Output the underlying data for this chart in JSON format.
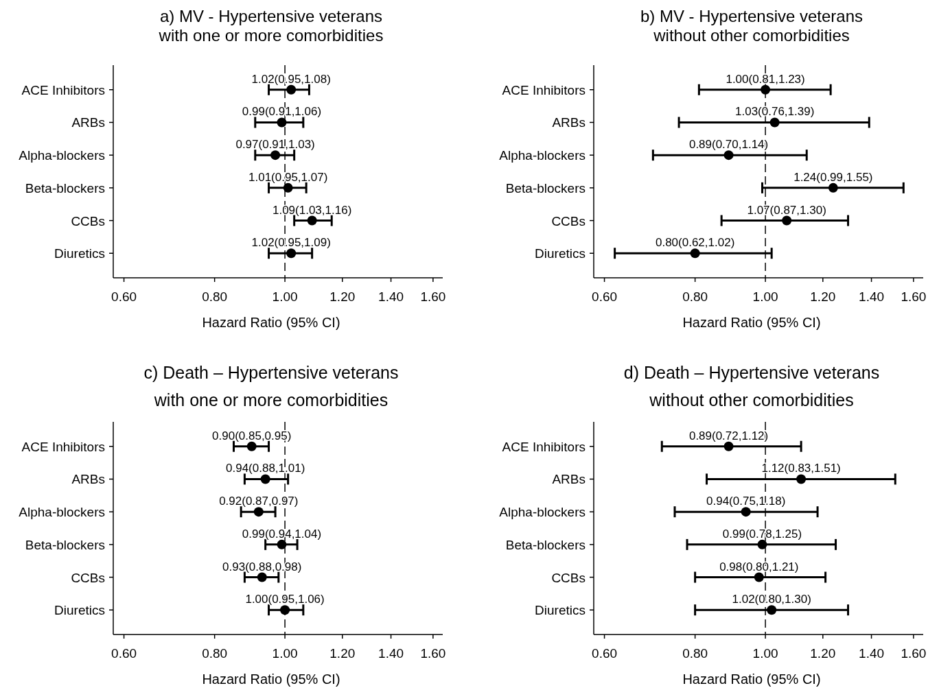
{
  "chart_data": [
    {
      "type": "scatter",
      "orientation": "horizontal",
      "title": "a) MV - Hypertensive veterans\nwith one or more comorbidities",
      "xlabel": "Hazard Ratio (95% CI)",
      "categories": [
        "ACE Inhibitors",
        "ARBs",
        "Alpha-blockers",
        "Beta-blockers",
        "CCBs",
        "Diuretics"
      ],
      "values": [
        1.02,
        0.99,
        0.97,
        1.01,
        1.09,
        1.02
      ],
      "errors": [
        [
          0.95,
          1.08
        ],
        [
          0.91,
          1.06
        ],
        [
          0.91,
          1.03
        ],
        [
          0.95,
          1.07
        ],
        [
          1.03,
          1.16
        ],
        [
          0.95,
          1.09
        ]
      ],
      "value_labels": [
        "1.02(0.95,1.08)",
        "0.99(0.91,1.06)",
        "0.97(0.91,1.03)",
        "1.01(0.95,1.07)",
        "1.09(1.03,1.16)",
        "1.02(0.95,1.09)"
      ],
      "color": "#000000",
      "marker": "circle",
      "log": "x",
      "xlim": [
        0.58,
        1.65
      ],
      "xticks": [
        {
          "value": 0.6,
          "label": "0.60"
        },
        {
          "value": 0.8,
          "label": "0.80"
        },
        {
          "value": 1,
          "label": "1.00"
        },
        {
          "value": 1.2,
          "label": "1.20"
        },
        {
          "value": 1.4,
          "label": "1.40"
        },
        {
          "value": 1.6,
          "label": "1.60"
        }
      ],
      "ref_lines": [
        {
          "axis": "x",
          "value": 1,
          "line_style": "dashed"
        }
      ],
      "grid": false
    },
    {
      "type": "scatter",
      "orientation": "horizontal",
      "title": "b) MV - Hypertensive veterans\nwithout other comorbidities",
      "xlabel": "Hazard Ratio (95% CI)",
      "categories": [
        "ACE Inhibitors",
        "ARBs",
        "Alpha-blockers",
        "Beta-blockers",
        "CCBs",
        "Diuretics"
      ],
      "values": [
        1.0,
        1.03,
        0.89,
        1.24,
        1.07,
        0.8
      ],
      "errors": [
        [
          0.81,
          1.23
        ],
        [
          0.76,
          1.39
        ],
        [
          0.7,
          1.14
        ],
        [
          0.99,
          1.55
        ],
        [
          0.87,
          1.3
        ],
        [
          0.62,
          1.02
        ]
      ],
      "value_labels": [
        "1.00(0.81,1.23)",
        "1.03(0.76,1.39)",
        "0.89(0.70,1.14)",
        "1.24(0.99,1.55)",
        "1.07(0.87,1.30)",
        "0.80(0.62,1.02)"
      ],
      "color": "#000000",
      "marker": "circle",
      "log": "x",
      "xlim": [
        0.58,
        1.65
      ],
      "xticks": [
        {
          "value": 0.6,
          "label": "0.60"
        },
        {
          "value": 0.8,
          "label": "0.80"
        },
        {
          "value": 1,
          "label": "1.00"
        },
        {
          "value": 1.2,
          "label": "1.20"
        },
        {
          "value": 1.4,
          "label": "1.40"
        },
        {
          "value": 1.6,
          "label": "1.60"
        }
      ],
      "ref_lines": [
        {
          "axis": "x",
          "value": 1,
          "line_style": "dashed"
        }
      ],
      "grid": false
    },
    {
      "type": "scatter",
      "orientation": "horizontal",
      "title": "c) Death – Hypertensive veterans\nwith one or more comorbidities",
      "xlabel": "Hazard Ratio (95% CI)",
      "categories": [
        "ACE Inhibitors",
        "ARBs",
        "Alpha-blockers",
        "Beta-blockers",
        "CCBs",
        "Diuretics"
      ],
      "values": [
        0.9,
        0.94,
        0.92,
        0.99,
        0.93,
        1.0
      ],
      "errors": [
        [
          0.85,
          0.95
        ],
        [
          0.88,
          1.01
        ],
        [
          0.87,
          0.97
        ],
        [
          0.94,
          1.04
        ],
        [
          0.88,
          0.98
        ],
        [
          0.95,
          1.06
        ]
      ],
      "value_labels": [
        "0.90(0.85,0.95)",
        "0.94(0.88,1.01)",
        "0.92(0.87,0.97)",
        "0.99(0.94,1.04)",
        "0.93(0.88,0.98)",
        "1.00(0.95,1.06)"
      ],
      "color": "#000000",
      "marker": "circle",
      "log": "x",
      "xlim": [
        0.58,
        1.65
      ],
      "xticks": [
        {
          "value": 0.6,
          "label": "0.60"
        },
        {
          "value": 0.8,
          "label": "0.80"
        },
        {
          "value": 1,
          "label": "1.00"
        },
        {
          "value": 1.2,
          "label": "1.20"
        },
        {
          "value": 1.4,
          "label": "1.40"
        },
        {
          "value": 1.6,
          "label": "1.60"
        }
      ],
      "ref_lines": [
        {
          "axis": "x",
          "value": 1,
          "line_style": "dashed"
        }
      ],
      "grid": false
    },
    {
      "type": "scatter",
      "orientation": "horizontal",
      "title": "d) Death – Hypertensive veterans\nwithout other comorbidities",
      "xlabel": "Hazard Ratio (95% CI)",
      "categories": [
        "ACE Inhibitors",
        "ARBs",
        "Alpha-blockers",
        "Beta-blockers",
        "CCBs",
        "Diuretics"
      ],
      "values": [
        0.89,
        1.12,
        0.94,
        0.99,
        0.98,
        1.02
      ],
      "errors": [
        [
          0.72,
          1.12
        ],
        [
          0.83,
          1.51
        ],
        [
          0.75,
          1.18
        ],
        [
          0.78,
          1.25
        ],
        [
          0.8,
          1.21
        ],
        [
          0.8,
          1.3
        ]
      ],
      "value_labels": [
        "0.89(0.72,1.12)",
        "1.12(0.83,1.51)",
        "0.94(0.75,1.18)",
        "0.99(0.78,1.25)",
        "0.98(0.80,1.21)",
        "1.02(0.80,1.30)"
      ],
      "color": "#000000",
      "marker": "circle",
      "log": "x",
      "xlim": [
        0.58,
        1.65
      ],
      "xticks": [
        {
          "value": 0.6,
          "label": "0.60"
        },
        {
          "value": 0.8,
          "label": "0.80"
        },
        {
          "value": 1,
          "label": "1.00"
        },
        {
          "value": 1.2,
          "label": "1.20"
        },
        {
          "value": 1.4,
          "label": "1.40"
        },
        {
          "value": 1.6,
          "label": "1.60"
        }
      ],
      "ref_lines": [
        {
          "axis": "x",
          "value": 1,
          "line_style": "dashed"
        }
      ],
      "grid": false
    }
  ]
}
